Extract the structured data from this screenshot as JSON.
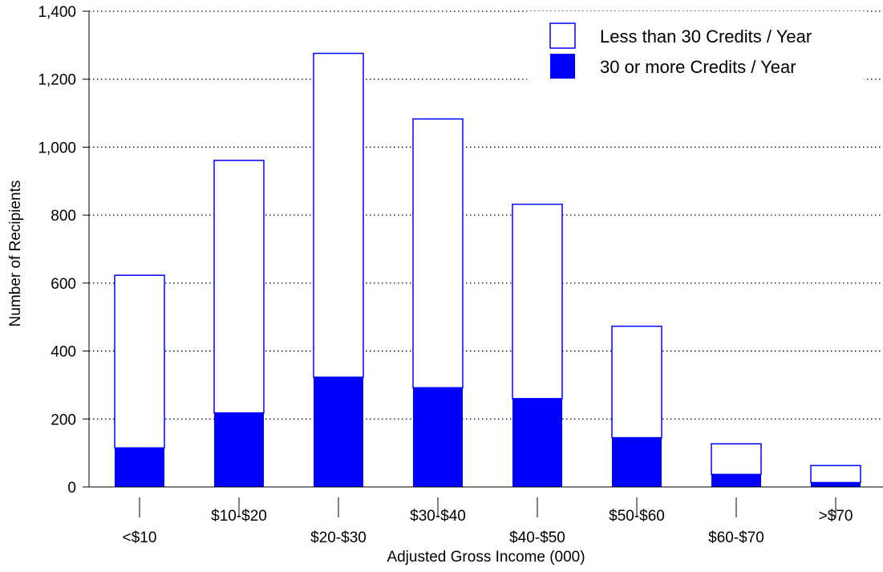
{
  "chart_data": {
    "type": "bar",
    "stacked": true,
    "xlabel": "Adjusted Gross Income (000)",
    "ylabel": "Number of Recipients",
    "ylim": [
      0,
      1400
    ],
    "yticks": [
      "0",
      "200",
      "400",
      "600",
      "800",
      "1,000",
      "1,200",
      "1,400"
    ],
    "grid": "horizontal dotted",
    "legend_position": "top-right",
    "categories": [
      "<$10",
      "$10-$20",
      "$20-$30",
      "$30-$40",
      "$40-$50",
      "$50-$60",
      "$60-$70",
      ">$70"
    ],
    "series": [
      {
        "name": "30 or more Credits / Year",
        "values": [
          115,
          218,
          323,
          292,
          260,
          145,
          37,
          13
        ],
        "color": "#0000ff",
        "fill": "solid"
      },
      {
        "name": "Less than 30 Credits / Year",
        "values": [
          508,
          743,
          953,
          791,
          572,
          328,
          90,
          50
        ],
        "color": "#0000ff",
        "fill": "hollow"
      }
    ],
    "totals": [
      623,
      961,
      1276,
      1083,
      832,
      473,
      127,
      63
    ]
  }
}
